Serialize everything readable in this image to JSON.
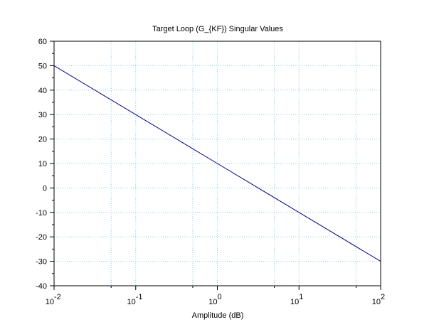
{
  "chart_data": {
    "type": "line",
    "title": "Target Loop (G_{KF}) Singular Values",
    "xlabel": "Amplitude (dB)",
    "ylabel": "",
    "x_scale": "log",
    "xlim": [
      0.01,
      100
    ],
    "ylim": [
      -40,
      60
    ],
    "grid": true,
    "x_ticks": [
      {
        "base": "10",
        "exp": "-2"
      },
      {
        "base": "10",
        "exp": "-1"
      },
      {
        "base": "10",
        "exp": "0"
      },
      {
        "base": "10",
        "exp": "1"
      },
      {
        "base": "10",
        "exp": "2"
      }
    ],
    "y_ticks": [
      "60",
      "50",
      "40",
      "30",
      "20",
      "10",
      "0",
      "-10",
      "-20",
      "-30",
      "-40"
    ],
    "series": [
      {
        "x": [
          0.01,
          0.1,
          1,
          10,
          100
        ],
        "values": [
          50,
          30,
          10,
          -10,
          -30
        ]
      }
    ],
    "colors": {
      "line": "#00008b",
      "grid": "#87ceeb",
      "axis": "#000000"
    }
  }
}
